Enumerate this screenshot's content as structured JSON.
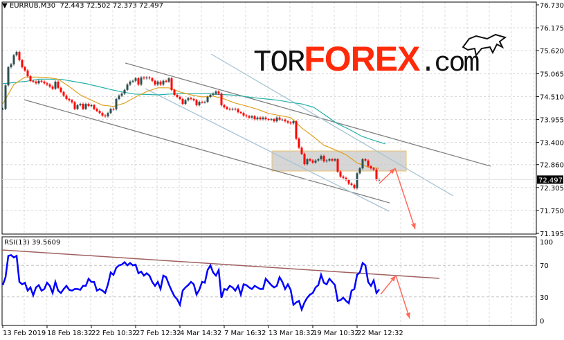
{
  "header": {
    "symbol_label": "EURRUB,M30",
    "ohlc": "72.443 72.502 72.373 72.497"
  },
  "logo": {
    "part1": "TOR",
    "part2": "FOREX",
    "part3": ".com"
  },
  "rsi_header": "RSI(13) 39.5609",
  "colors": {
    "bull_candle": "#2f4f4f",
    "bear_candle": "#ff0000",
    "ma_fast": "#e0a020",
    "ma_slow": "#20b0a8",
    "rsi": "#0000ff",
    "trendline": "#808080",
    "channel": "#a8c4d4",
    "rsi_trendline": "#a06060",
    "forecast_arrow": "#ff6a5a"
  },
  "chart_data": [
    {
      "type": "candlestick",
      "title": "EURRUB,M30",
      "y_ticks": [
        "76.730",
        "76.175",
        "75.620",
        "75.065",
        "74.510",
        "73.955",
        "73.400",
        "72.860",
        "72.305",
        "71.750",
        "71.195"
      ],
      "ylim": [
        71.195,
        76.73
      ],
      "current_price": "72.497",
      "x_ticks": [
        "13 Feb 2019",
        "18 Feb 18:32",
        "22 Feb 10:32",
        "27 Feb 12:32",
        "4 Mar 14:32",
        "7 Mar 16:32",
        "13 Mar 18:32",
        "19 Mar 10:32",
        "22 Mar 12:32"
      ],
      "grid": true,
      "close": [
        74.21,
        74.78,
        75.22,
        75.29,
        75.51,
        75.59,
        75.39,
        75.22,
        75.14,
        75.0,
        74.89,
        74.87,
        74.83,
        74.89,
        74.87,
        74.83,
        74.8,
        74.75,
        74.7,
        74.87,
        74.72,
        74.62,
        74.53,
        74.45,
        74.42,
        74.37,
        74.21,
        74.3,
        74.33,
        74.21,
        74.33,
        74.28,
        74.3,
        74.21,
        74.16,
        74.11,
        74.05,
        74.03,
        74.11,
        74.21,
        74.2,
        74.45,
        74.53,
        74.58,
        74.67,
        74.8,
        74.87,
        74.89,
        74.95,
        74.8,
        74.97,
        74.95,
        74.97,
        74.95,
        74.89,
        74.8,
        74.87,
        74.8,
        74.89,
        74.87,
        74.95,
        74.67,
        74.55,
        74.5,
        74.45,
        74.33,
        74.42,
        74.47,
        74.45,
        74.42,
        74.3,
        74.38,
        74.37,
        74.38,
        74.5,
        74.55,
        74.58,
        74.63,
        74.58,
        74.3,
        74.25,
        74.21,
        74.2,
        74.21,
        74.2,
        74.13,
        74.11,
        74.05,
        74.03,
        74.0,
        74.03,
        73.96,
        74.0,
        73.96,
        74.0,
        73.96,
        73.95,
        73.96,
        73.91,
        74.0,
        73.95,
        73.95,
        73.91,
        73.88,
        73.86,
        73.91,
        73.49,
        73.27,
        73.12,
        72.87,
        72.99,
        72.96,
        72.91,
        72.96,
        72.99,
        73.07,
        72.94,
        72.96,
        72.99,
        72.96,
        72.99,
        72.69,
        72.57,
        72.54,
        72.49,
        72.4,
        72.37,
        72.29,
        72.65,
        72.77,
        72.99,
        72.96,
        72.82,
        72.77,
        72.74,
        72.49,
        72.497
      ],
      "ma_fast": [
        74.33,
        74.8,
        74.98,
        74.98,
        74.97,
        74.93,
        74.75,
        74.55,
        74.42,
        74.3,
        74.27,
        74.35,
        74.5,
        74.63,
        74.72,
        74.72,
        74.62,
        74.55,
        74.5,
        74.52,
        74.45,
        74.35,
        74.28,
        74.2,
        74.1,
        74.05,
        74.0,
        73.75,
        73.55,
        73.33,
        73.22,
        73.1,
        72.9,
        72.8,
        72.77
      ],
      "ma_slow": [
        74.82,
        74.85,
        74.88,
        74.93,
        74.93,
        74.92,
        74.87,
        74.82,
        74.75,
        74.68,
        74.62,
        74.57,
        74.56,
        74.55,
        74.57,
        74.58,
        74.58,
        74.58,
        74.56,
        74.55,
        74.52,
        74.48,
        74.45,
        74.42,
        74.37,
        74.33,
        74.25,
        74.05,
        73.85,
        73.71,
        73.55,
        73.45,
        73.36
      ]
    },
    {
      "type": "line",
      "title": "RSI(13) 39.5609",
      "y_ticks": [
        "100",
        "70",
        "30",
        "0"
      ],
      "ylim": [
        0,
        100
      ],
      "levels": [
        70,
        30
      ],
      "values": [
        45,
        55,
        82,
        83,
        80,
        82,
        49,
        46,
        48,
        38,
        42,
        32,
        42,
        45,
        38,
        40,
        48,
        44,
        35,
        49,
        38,
        35,
        40,
        44,
        39,
        38,
        40,
        40,
        39,
        44,
        44,
        53,
        49,
        49,
        38,
        40,
        38,
        35,
        46,
        61,
        58,
        67,
        70,
        71,
        74,
        70,
        73,
        70,
        71,
        60,
        62,
        57,
        60,
        57,
        49,
        44,
        49,
        40,
        57,
        55,
        46,
        38,
        31,
        27,
        20,
        38,
        42,
        45,
        49,
        46,
        33,
        39,
        49,
        48,
        64,
        70,
        61,
        57,
        64,
        29,
        40,
        39,
        44,
        42,
        38,
        44,
        33,
        46,
        45,
        42,
        40,
        44,
        42,
        40,
        40,
        53,
        49,
        45,
        42,
        44,
        55,
        49,
        40,
        46,
        39,
        20,
        23,
        25,
        14,
        23,
        29,
        33,
        35,
        42,
        45,
        58,
        48,
        46,
        53,
        49,
        45,
        25,
        26,
        29,
        25,
        22,
        38,
        40,
        58,
        61,
        73,
        70,
        49,
        44,
        51,
        35,
        39.56
      ]
    }
  ]
}
